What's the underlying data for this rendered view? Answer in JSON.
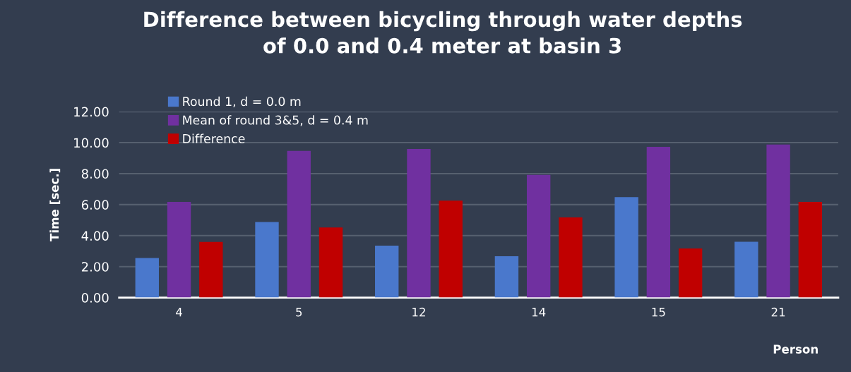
{
  "chart_data": {
    "type": "bar",
    "title": "Difference between bicycling through water depths\nof 0.0 and 0.4 meter at basin 3",
    "xlabel": "Person",
    "ylabel": "Time [sec.]",
    "categories": [
      "4",
      "5",
      "12",
      "14",
      "15",
      "21"
    ],
    "series": [
      {
        "name": "Round 1, d = 0.0 m",
        "color": "#4a78cc",
        "values": [
          2.56,
          4.88,
          3.35,
          2.67,
          6.48,
          3.6
        ]
      },
      {
        "name": "Mean of round 3&5, d = 0.4 m",
        "color": "#7030a0",
        "values": [
          6.18,
          9.46,
          9.59,
          7.92,
          9.73,
          9.87
        ]
      },
      {
        "name": "Difference",
        "color": "#c00000",
        "values": [
          3.59,
          4.53,
          6.26,
          5.17,
          3.17,
          6.17
        ]
      }
    ],
    "ylim": [
      0,
      12
    ],
    "yticks": [
      {
        "value": 0,
        "label": "0.00"
      },
      {
        "value": 2,
        "label": "2.00"
      },
      {
        "value": 4,
        "label": "4.00"
      },
      {
        "value": 6,
        "label": "6.00"
      },
      {
        "value": 8,
        "label": "8.00"
      },
      {
        "value": 10,
        "label": "10.00"
      },
      {
        "value": 12,
        "label": "12.00"
      }
    ],
    "grid": "y",
    "legend": "top left"
  }
}
